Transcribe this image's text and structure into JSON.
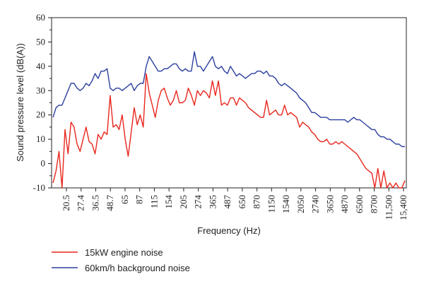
{
  "chart_data": {
    "type": "line",
    "xlabel": "Frequency (Hz)",
    "ylabel": "Sound pressure level (dB(A))",
    "ylim": [
      -10,
      60
    ],
    "yticks": [
      -10,
      0,
      10,
      20,
      30,
      40,
      50,
      60
    ],
    "x_tick_labels": [
      "20.5",
      "27.4",
      "36.5",
      "48.7",
      "65",
      "87",
      "115",
      "154",
      "205",
      "274",
      "365",
      "487",
      "650",
      "870",
      "1150",
      "1540",
      "2050",
      "2740",
      "3650",
      "4870",
      "6500",
      "8700",
      "11,500",
      "15,400"
    ],
    "grid": false,
    "legend_position": "bottom-left",
    "series": [
      {
        "name": "15kW engine noise",
        "color": "#e8261c",
        "values": [
          -8,
          -3,
          5,
          -10,
          14,
          4,
          17,
          15,
          8,
          5,
          10,
          15,
          9,
          8,
          4,
          12,
          10,
          13,
          12,
          28,
          15,
          16,
          14,
          20,
          10,
          3,
          13,
          23,
          16,
          20,
          15,
          37,
          29,
          24,
          19,
          26,
          30,
          31,
          27,
          24,
          26,
          30,
          25,
          25,
          26,
          31,
          28,
          24,
          30,
          28,
          30,
          29,
          27,
          34,
          28,
          34,
          24,
          25,
          24,
          27,
          27,
          24,
          27,
          26,
          25,
          23,
          22,
          21,
          20,
          19,
          19,
          26,
          20,
          21,
          22,
          20,
          20,
          24,
          20,
          21,
          20,
          19,
          15,
          17,
          16,
          15,
          13,
          12,
          10,
          9,
          9,
          10,
          8,
          8,
          9,
          8,
          9,
          8,
          7,
          6,
          5,
          4,
          2,
          0,
          -2,
          -3,
          -4,
          -10,
          -2,
          -10,
          -3,
          -10,
          -8,
          -10,
          -8,
          -10,
          -10,
          -7
        ]
      },
      {
        "name": "60km/h background noise",
        "color": "#2b3f9e",
        "values": [
          19,
          23,
          24,
          24,
          27,
          30,
          33,
          33,
          31,
          30,
          31,
          33,
          32,
          34,
          37,
          35,
          38,
          38,
          39,
          31,
          30,
          31,
          31,
          30,
          31,
          32,
          33,
          30,
          32,
          33,
          33,
          40,
          44,
          42,
          40,
          38,
          38,
          39,
          39,
          40,
          41,
          41,
          39,
          38,
          39,
          38,
          38,
          46,
          40,
          40,
          38,
          40,
          42,
          44,
          40,
          39,
          40,
          38,
          37,
          40,
          38,
          36,
          37,
          36,
          35,
          36,
          37,
          37,
          38,
          38,
          37,
          38,
          36,
          36,
          35,
          33,
          32,
          33,
          32,
          31,
          30,
          29,
          27,
          26,
          25,
          23,
          21,
          21,
          20,
          19,
          19,
          19,
          18,
          18,
          18,
          18,
          18,
          18,
          17,
          18,
          19,
          18,
          18,
          17,
          16,
          15,
          14,
          14,
          12,
          11,
          11,
          10,
          10,
          9,
          8,
          8,
          7,
          7
        ]
      }
    ]
  }
}
